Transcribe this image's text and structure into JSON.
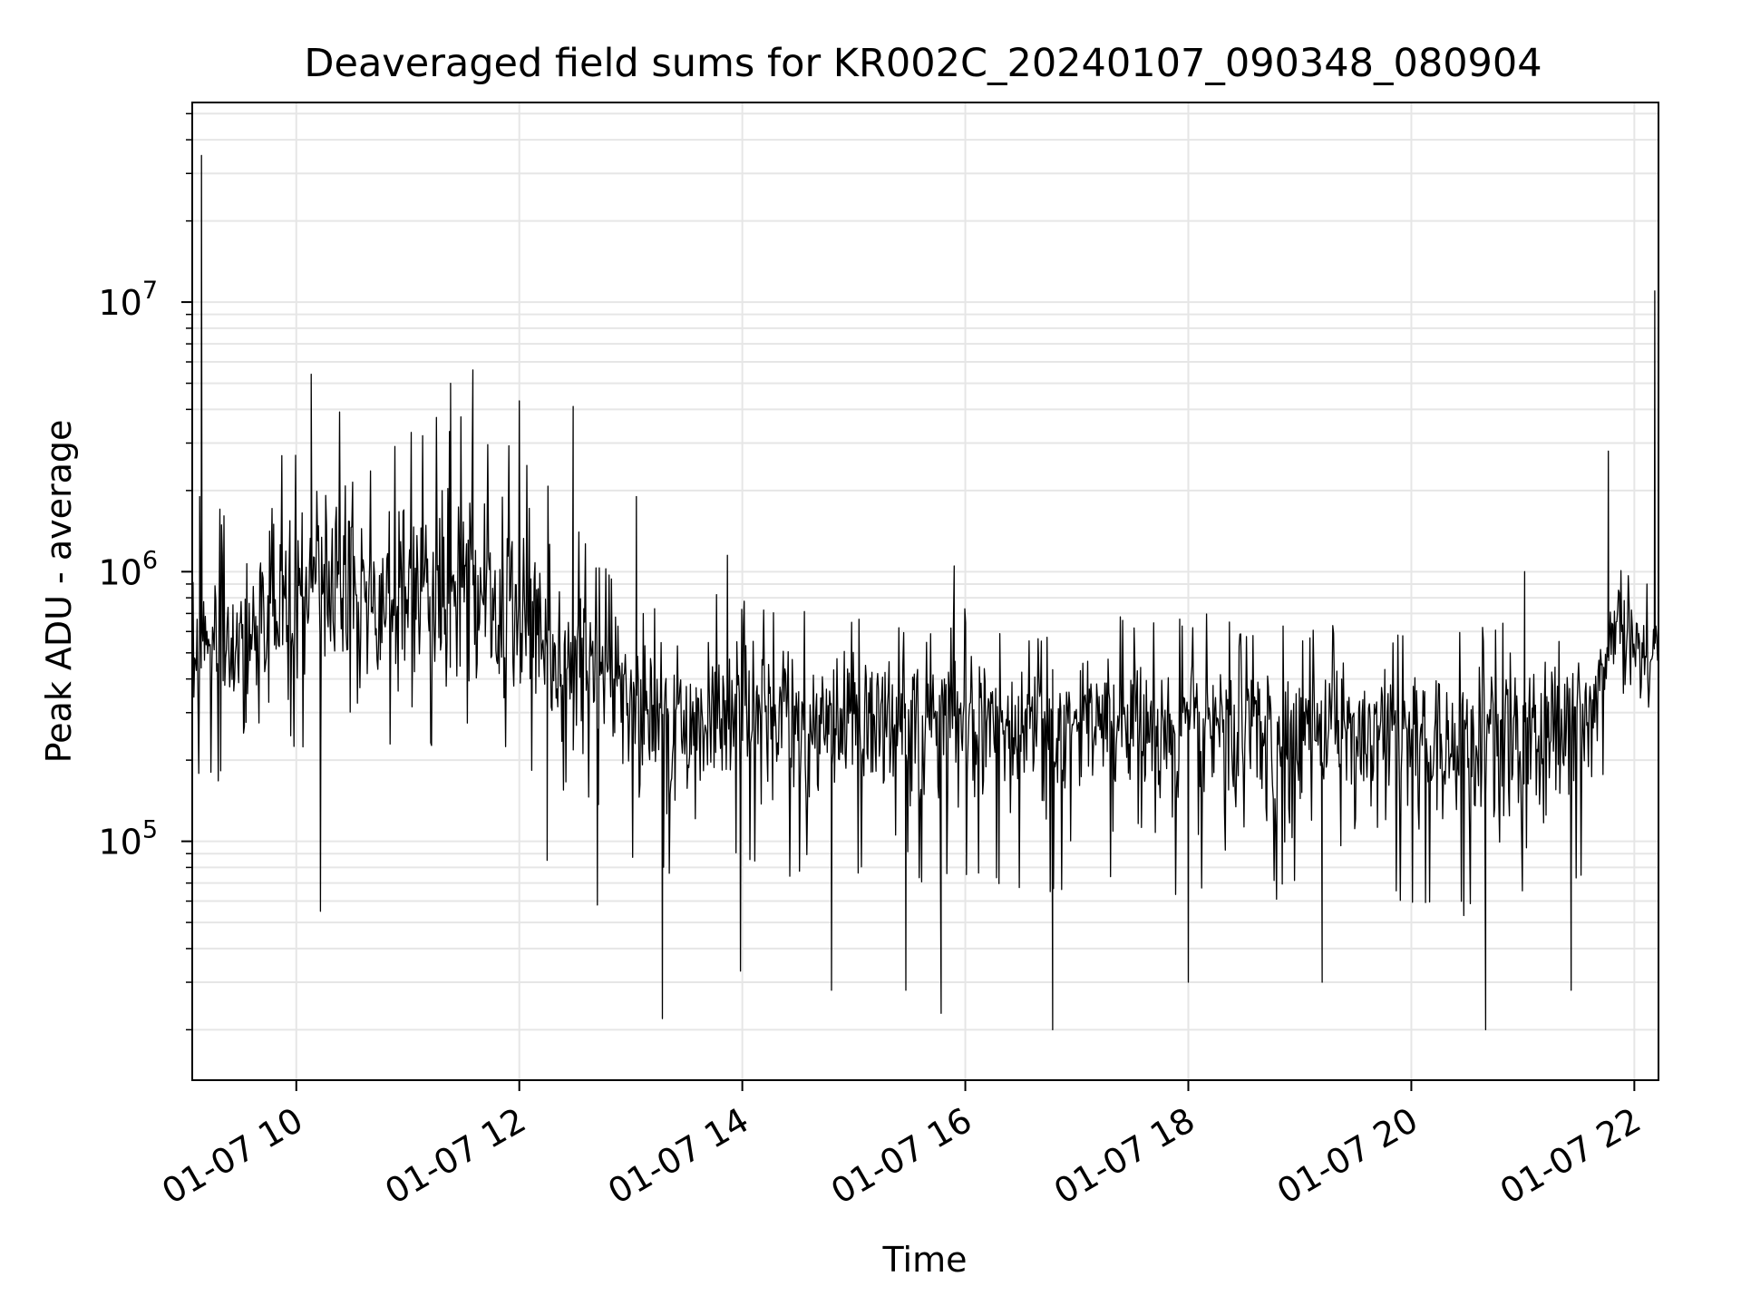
{
  "chart_data": {
    "type": "line",
    "title": "Deaveraged field sums for KR002C_20240107_090348_080904",
    "xlabel": "Time",
    "ylabel": "Peak ADU - average",
    "x_tick_labels": [
      "01-07 10",
      "01-07 12",
      "01-07 14",
      "01-07 16",
      "01-07 18",
      "01-07 20",
      "01-07 22"
    ],
    "x_tick_values": [
      "2024-01-07T10:00",
      "2024-01-07T12:00",
      "2024-01-07T14:00",
      "2024-01-07T16:00",
      "2024-01-07T18:00",
      "2024-01-07T20:00",
      "2024-01-07T22:00"
    ],
    "xlim": [
      "2024-01-07T09:04",
      "2024-01-07T22:13"
    ],
    "y_scale": "log",
    "ylim": [
      13000,
      55000000
    ],
    "y_major_ticks": [
      {
        "value": 100000,
        "base": "10",
        "exp": "5"
      },
      {
        "value": 1000000,
        "base": "10",
        "exp": "6"
      },
      {
        "value": 10000000,
        "base": "10",
        "exp": "7"
      }
    ],
    "grid": true,
    "line_color": "#000000",
    "grid_color": "#e6e6e6",
    "series": [
      {
        "x": [
          "2024-01-07T09:05",
          "2024-01-07T09:20",
          "2024-01-07T09:35",
          "2024-01-07T09:50",
          "2024-01-07T10:05",
          "2024-01-07T10:20",
          "2024-01-07T10:35",
          "2024-01-07T10:50",
          "2024-01-07T11:05",
          "2024-01-07T11:20",
          "2024-01-07T11:35",
          "2024-01-07T11:50",
          "2024-01-07T12:05",
          "2024-01-07T12:20",
          "2024-01-07T12:35",
          "2024-01-07T12:50",
          "2024-01-07T13:05",
          "2024-01-07T13:20",
          "2024-01-07T13:35",
          "2024-01-07T13:50",
          "2024-01-07T14:05",
          "2024-01-07T14:20",
          "2024-01-07T14:35",
          "2024-01-07T14:50",
          "2024-01-07T15:05",
          "2024-01-07T15:20",
          "2024-01-07T15:35",
          "2024-01-07T15:50",
          "2024-01-07T16:05",
          "2024-01-07T16:20",
          "2024-01-07T16:35",
          "2024-01-07T16:50",
          "2024-01-07T17:05",
          "2024-01-07T17:20",
          "2024-01-07T17:35",
          "2024-01-07T17:50",
          "2024-01-07T18:05",
          "2024-01-07T18:20",
          "2024-01-07T18:35",
          "2024-01-07T18:50",
          "2024-01-07T19:05",
          "2024-01-07T19:20",
          "2024-01-07T19:35",
          "2024-01-07T19:50",
          "2024-01-07T20:05",
          "2024-01-07T20:20",
          "2024-01-07T20:35",
          "2024-01-07T20:50",
          "2024-01-07T21:05",
          "2024-01-07T21:20",
          "2024-01-07T21:35",
          "2024-01-07T21:50",
          "2024-01-07T22:05"
        ],
        "median": [
          500000,
          550000,
          650000,
          700000,
          800000,
          900000,
          850000,
          800000,
          850000,
          900000,
          800000,
          750000,
          600000,
          550000,
          450000,
          380000,
          320000,
          300000,
          300000,
          310000,
          320000,
          300000,
          300000,
          290000,
          300000,
          290000,
          280000,
          270000,
          280000,
          280000,
          270000,
          260000,
          270000,
          280000,
          270000,
          260000,
          270000,
          280000,
          270000,
          260000,
          270000,
          280000,
          270000,
          260000,
          260000,
          250000,
          260000,
          270000,
          270000,
          280000,
          300000,
          600000,
          500000
        ],
        "high": [
          1800000,
          1700000,
          2500000,
          2800000,
          3500000,
          4000000,
          3800000,
          3500000,
          3500000,
          4000000,
          3800000,
          3200000,
          2500000,
          2000000,
          1400000,
          1000000,
          800000,
          800000,
          850000,
          900000,
          800000,
          750000,
          800000,
          750000,
          800000,
          750000,
          700000,
          700000,
          750000,
          700000,
          650000,
          650000,
          650000,
          700000,
          650000,
          650000,
          700000,
          700000,
          650000,
          650000,
          650000,
          700000,
          650000,
          650000,
          650000,
          650000,
          650000,
          650000,
          650000,
          650000,
          700000,
          1200000,
          900000
        ],
        "low": [
          150000,
          170000,
          180000,
          200000,
          220000,
          200000,
          200000,
          200000,
          220000,
          230000,
          230000,
          220000,
          180000,
          160000,
          130000,
          110000,
          80000,
          75000,
          75000,
          80000,
          80000,
          70000,
          75000,
          70000,
          75000,
          70000,
          65000,
          65000,
          65000,
          65000,
          60000,
          60000,
          60000,
          65000,
          60000,
          60000,
          60000,
          65000,
          60000,
          60000,
          60000,
          65000,
          60000,
          60000,
          55000,
          50000,
          50000,
          55000,
          55000,
          60000,
          80000,
          300000,
          300000
        ],
        "spikes": [
          {
            "x": "2024-01-07T09:09",
            "y": 35000000
          },
          {
            "x": "2024-01-07T09:08",
            "y": 1900000
          },
          {
            "x": "2024-01-07T10:08",
            "y": 5400000
          },
          {
            "x": "2024-01-07T10:13",
            "y": 55000
          },
          {
            "x": "2024-01-07T11:35",
            "y": 5600000
          },
          {
            "x": "2024-01-07T11:23",
            "y": 5000000
          },
          {
            "x": "2024-01-07T12:00",
            "y": 4300000
          },
          {
            "x": "2024-01-07T12:29",
            "y": 4100000
          },
          {
            "x": "2024-01-07T12:15",
            "y": 85000
          },
          {
            "x": "2024-01-07T12:42",
            "y": 58000
          },
          {
            "x": "2024-01-07T13:03",
            "y": 1900000
          },
          {
            "x": "2024-01-07T13:17",
            "y": 22000
          },
          {
            "x": "2024-01-07T13:52",
            "y": 1150000
          },
          {
            "x": "2024-01-07T13:59",
            "y": 33000
          },
          {
            "x": "2024-01-07T14:48",
            "y": 28000
          },
          {
            "x": "2024-01-07T15:28",
            "y": 28000
          },
          {
            "x": "2024-01-07T15:47",
            "y": 23000
          },
          {
            "x": "2024-01-07T15:54",
            "y": 1050000
          },
          {
            "x": "2024-01-07T16:47",
            "y": 20000
          },
          {
            "x": "2024-01-07T18:00",
            "y": 30000
          },
          {
            "x": "2024-01-07T19:12",
            "y": 30000
          },
          {
            "x": "2024-01-07T20:40",
            "y": 20000
          },
          {
            "x": "2024-01-07T21:01",
            "y": 1000000
          },
          {
            "x": "2024-01-07T21:26",
            "y": 28000
          },
          {
            "x": "2024-01-07T21:46",
            "y": 2800000
          },
          {
            "x": "2024-01-07T22:11",
            "y": 11000000
          }
        ]
      }
    ]
  }
}
